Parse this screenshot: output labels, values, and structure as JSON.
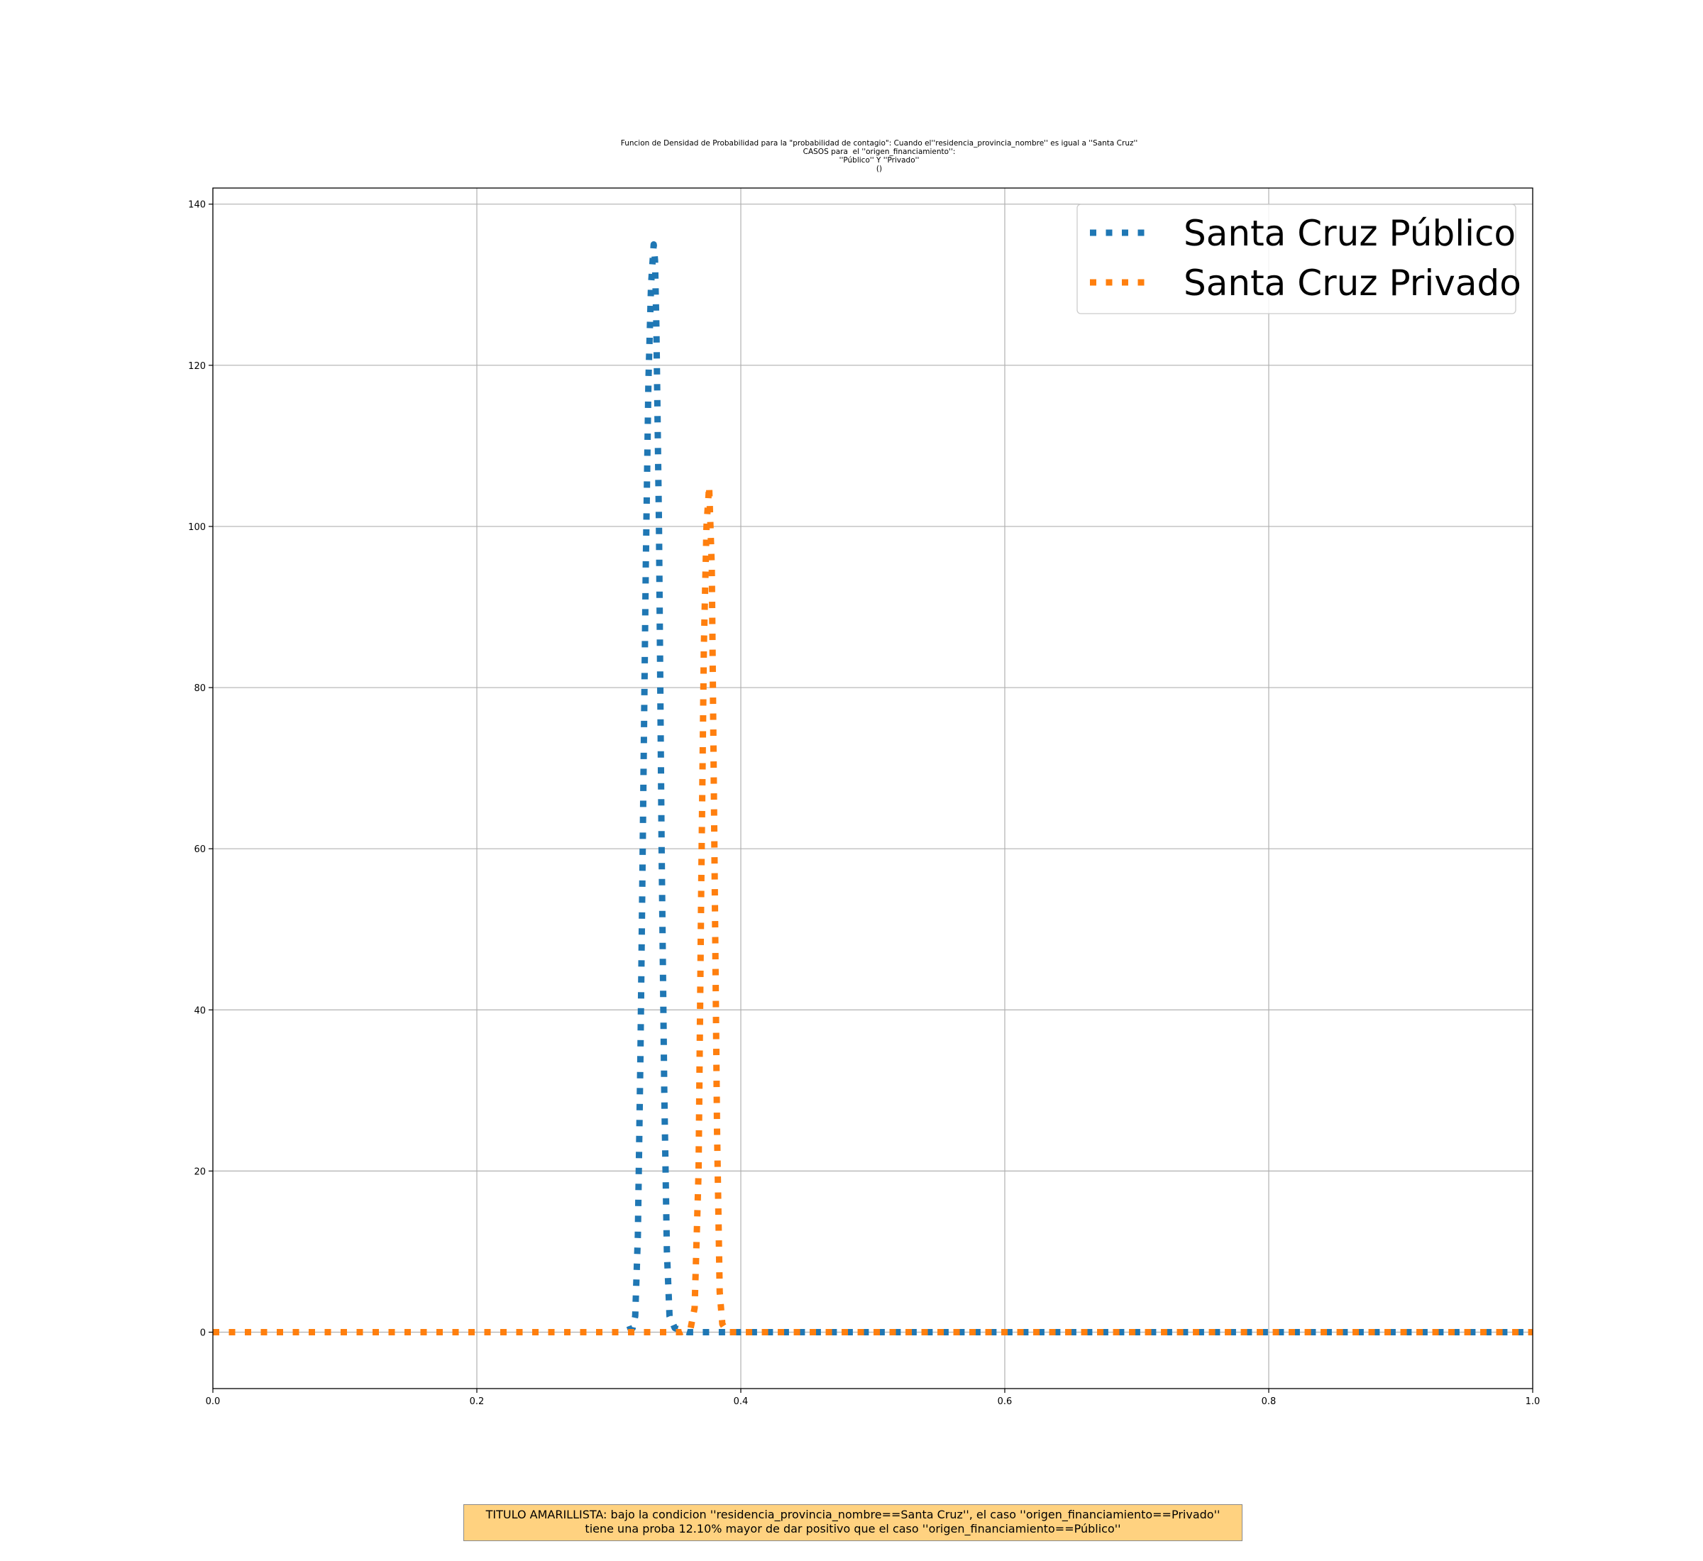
{
  "chart_data": {
    "type": "line",
    "title_lines": [
      "Funcion de Densidad de Probabilidad para la \"probabilidad de contagio\": Cuando el''residencia_provincia_nombre'' es igual a ''Santa Cruz''",
      "CASOS para  el ''origen_financiamiento'':",
      "''Público'' Y ''Privado''",
      "()"
    ],
    "xlabel": "",
    "ylabel": "",
    "xlim": [
      0.0,
      1.0
    ],
    "ylim": [
      -7,
      142
    ],
    "x_ticks": [
      "0.0",
      "0.2",
      "0.4",
      "0.6",
      "0.8",
      "1.0"
    ],
    "y_ticks": [
      "0",
      "20",
      "40",
      "60",
      "80",
      "100",
      "120",
      "140"
    ],
    "grid": true,
    "legend_position": "top-right",
    "line_style": "dotted",
    "series": [
      {
        "name": "Santa Cruz Público",
        "color": "#1f77b4",
        "x": [
          0.0,
          0.31,
          0.318,
          0.32,
          0.322,
          0.324,
          0.326,
          0.328,
          0.33,
          0.332,
          0.334,
          0.335,
          0.336,
          0.338,
          0.34,
          0.342,
          0.344,
          0.346,
          0.35,
          0.36,
          1.0
        ],
        "y": [
          0,
          0,
          0.5,
          2,
          12,
          35,
          65,
          95,
          118,
          130,
          135,
          133,
          125,
          100,
          60,
          30,
          10,
          2,
          0.5,
          0,
          0
        ]
      },
      {
        "name": "Santa Cruz Privado",
        "color": "#ff7f0e",
        "x": [
          0.0,
          0.355,
          0.362,
          0.365,
          0.368,
          0.37,
          0.372,
          0.374,
          0.376,
          0.378,
          0.38,
          0.382,
          0.384,
          0.386,
          0.39,
          1.0
        ],
        "y": [
          0,
          0,
          0.5,
          3,
          20,
          55,
          85,
          100,
          105,
          95,
          60,
          25,
          5,
          1,
          0,
          0
        ]
      }
    ]
  },
  "caption": {
    "line1": "TITULO AMARILLISTA: bajo la condicion ''residencia_provincia_nombre==Santa Cruz'', el caso ''origen_financiamiento==Privado''",
    "line2": "tiene una proba 12.10% mayor de dar positivo que el caso ''origen_financiamiento==Público''"
  }
}
